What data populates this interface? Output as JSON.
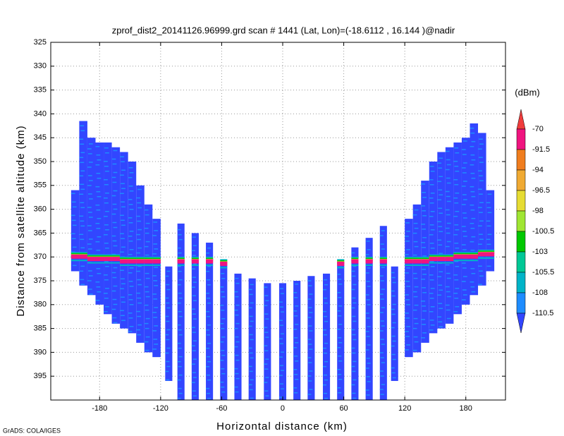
{
  "chart_data": {
    "type": "profile",
    "title": "zprof_dist2_20141126.96999.grd  scan # 1441  (Lat, Lon)=(-18.6112 , 16.144 )@nadir",
    "x_label": "Horizontal distance (km)",
    "y_label": "Distance from satellite altitude (km)",
    "footer": "GrADS: COLA/IGES",
    "xlim": [
      -228,
      219
    ],
    "ylim": [
      325,
      400
    ],
    "y_inverted": true,
    "xticks": [
      -180,
      -120,
      -60,
      0,
      60,
      120,
      180
    ],
    "yticks": [
      325,
      330,
      335,
      340,
      345,
      350,
      355,
      360,
      365,
      370,
      375,
      380,
      385,
      390,
      395
    ],
    "grid": true,
    "x": [
      -204,
      -196,
      -188,
      -180,
      -172,
      -164,
      -156,
      -148,
      -140,
      -132,
      -124,
      -112,
      -100,
      -86,
      -72,
      -58,
      -44,
      -30,
      -15,
      0,
      14,
      28,
      43,
      57,
      71,
      85,
      99,
      110,
      124,
      132,
      140,
      148,
      156,
      164,
      172,
      180,
      188,
      196,
      204
    ],
    "top": [
      356,
      341.5,
      345,
      346,
      346,
      347,
      348,
      350,
      355,
      359,
      362,
      372,
      363,
      365,
      367,
      371,
      373.5,
      374.5,
      375.5,
      375.5,
      375,
      374,
      373.5,
      371,
      368,
      366,
      363.5,
      372,
      362,
      359,
      354,
      350,
      348,
      347,
      346,
      345,
      342,
      344,
      356
    ],
    "bottom": [
      373,
      376,
      378,
      380,
      382,
      384,
      385,
      386,
      388,
      390,
      391,
      396,
      400,
      400,
      400,
      400,
      400,
      400,
      400,
      400,
      400,
      400,
      400,
      400,
      400,
      400,
      400,
      396,
      391,
      390,
      388,
      386,
      385,
      384,
      382,
      380,
      378,
      376,
      373
    ],
    "surface": [
      370,
      370,
      370.5,
      370.5,
      370.5,
      370.5,
      371,
      371,
      371,
      371,
      371,
      null,
      371,
      371,
      371,
      371.5,
      null,
      null,
      null,
      null,
      null,
      null,
      null,
      371.5,
      371,
      371,
      371,
      null,
      371,
      371,
      371,
      370.5,
      370.5,
      370.5,
      370,
      370,
      370,
      369.5,
      369.5
    ],
    "colorbar": {
      "unit": "(dBm)",
      "levels": [
        -70,
        -91.5,
        -94,
        -96.5,
        -98,
        -100.5,
        -103,
        -105.5,
        -108,
        -110.5
      ],
      "colors": [
        "#f03c3c",
        "#f0147f",
        "#f07d1e",
        "#f0aa32",
        "#e6dc32",
        "#a0e632",
        "#00c800",
        "#00c896",
        "#00b4c8",
        "#1e8cff",
        "#3246ff"
      ]
    }
  }
}
